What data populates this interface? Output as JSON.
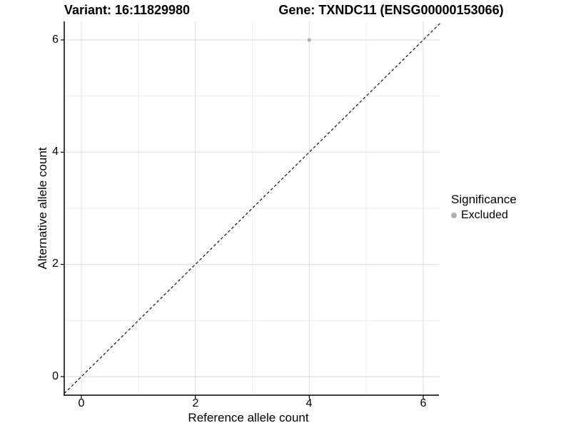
{
  "titles": {
    "variant": "Variant: 16:11829980",
    "gene": "Gene: TXNDC11 (ENSG00000153066)"
  },
  "axes": {
    "x": {
      "label": "Reference allele count",
      "tick_labels": [
        "0",
        "2",
        "4",
        "6"
      ],
      "tick_values": [
        0,
        2,
        4,
        6
      ]
    },
    "y": {
      "label": "Alternative allele count",
      "tick_labels": [
        "0",
        "2",
        "4",
        "6"
      ],
      "tick_values": [
        0,
        2,
        4,
        6
      ]
    }
  },
  "legend": {
    "title": "Significance",
    "items": [
      {
        "label": "Excluded",
        "color": "#b0b0b0"
      }
    ]
  },
  "colors": {
    "point": "#b0b0b0",
    "grid_major": "#e2e2e2",
    "grid_minor": "#efefef",
    "axis_line": "#000000",
    "tick_mark": "#000000",
    "reference_line": "#000000"
  },
  "chart_data": {
    "type": "scatter",
    "title": "Variant: 16:11829980 — Gene: TXNDC11 (ENSG00000153066)",
    "xlabel": "Reference allele count",
    "ylabel": "Alternative allele count",
    "xlim": [
      -0.3,
      6.3
    ],
    "ylim": [
      -0.33,
      6.33
    ],
    "x_ticks": [
      0,
      2,
      4,
      6
    ],
    "y_ticks": [
      0,
      2,
      4,
      6
    ],
    "minor_gridlines": [
      1,
      3,
      5
    ],
    "grid": "on",
    "legend_position": "right",
    "legend_title": "Significance",
    "series": [
      {
        "name": "Excluded",
        "color": "#b0b0b0",
        "point_radius": 2.6,
        "points": [
          {
            "x": 4,
            "y": 6
          }
        ]
      }
    ],
    "reference_line": {
      "type": "identity",
      "equation": "y = x",
      "style": "dashed",
      "color": "#000000"
    }
  }
}
